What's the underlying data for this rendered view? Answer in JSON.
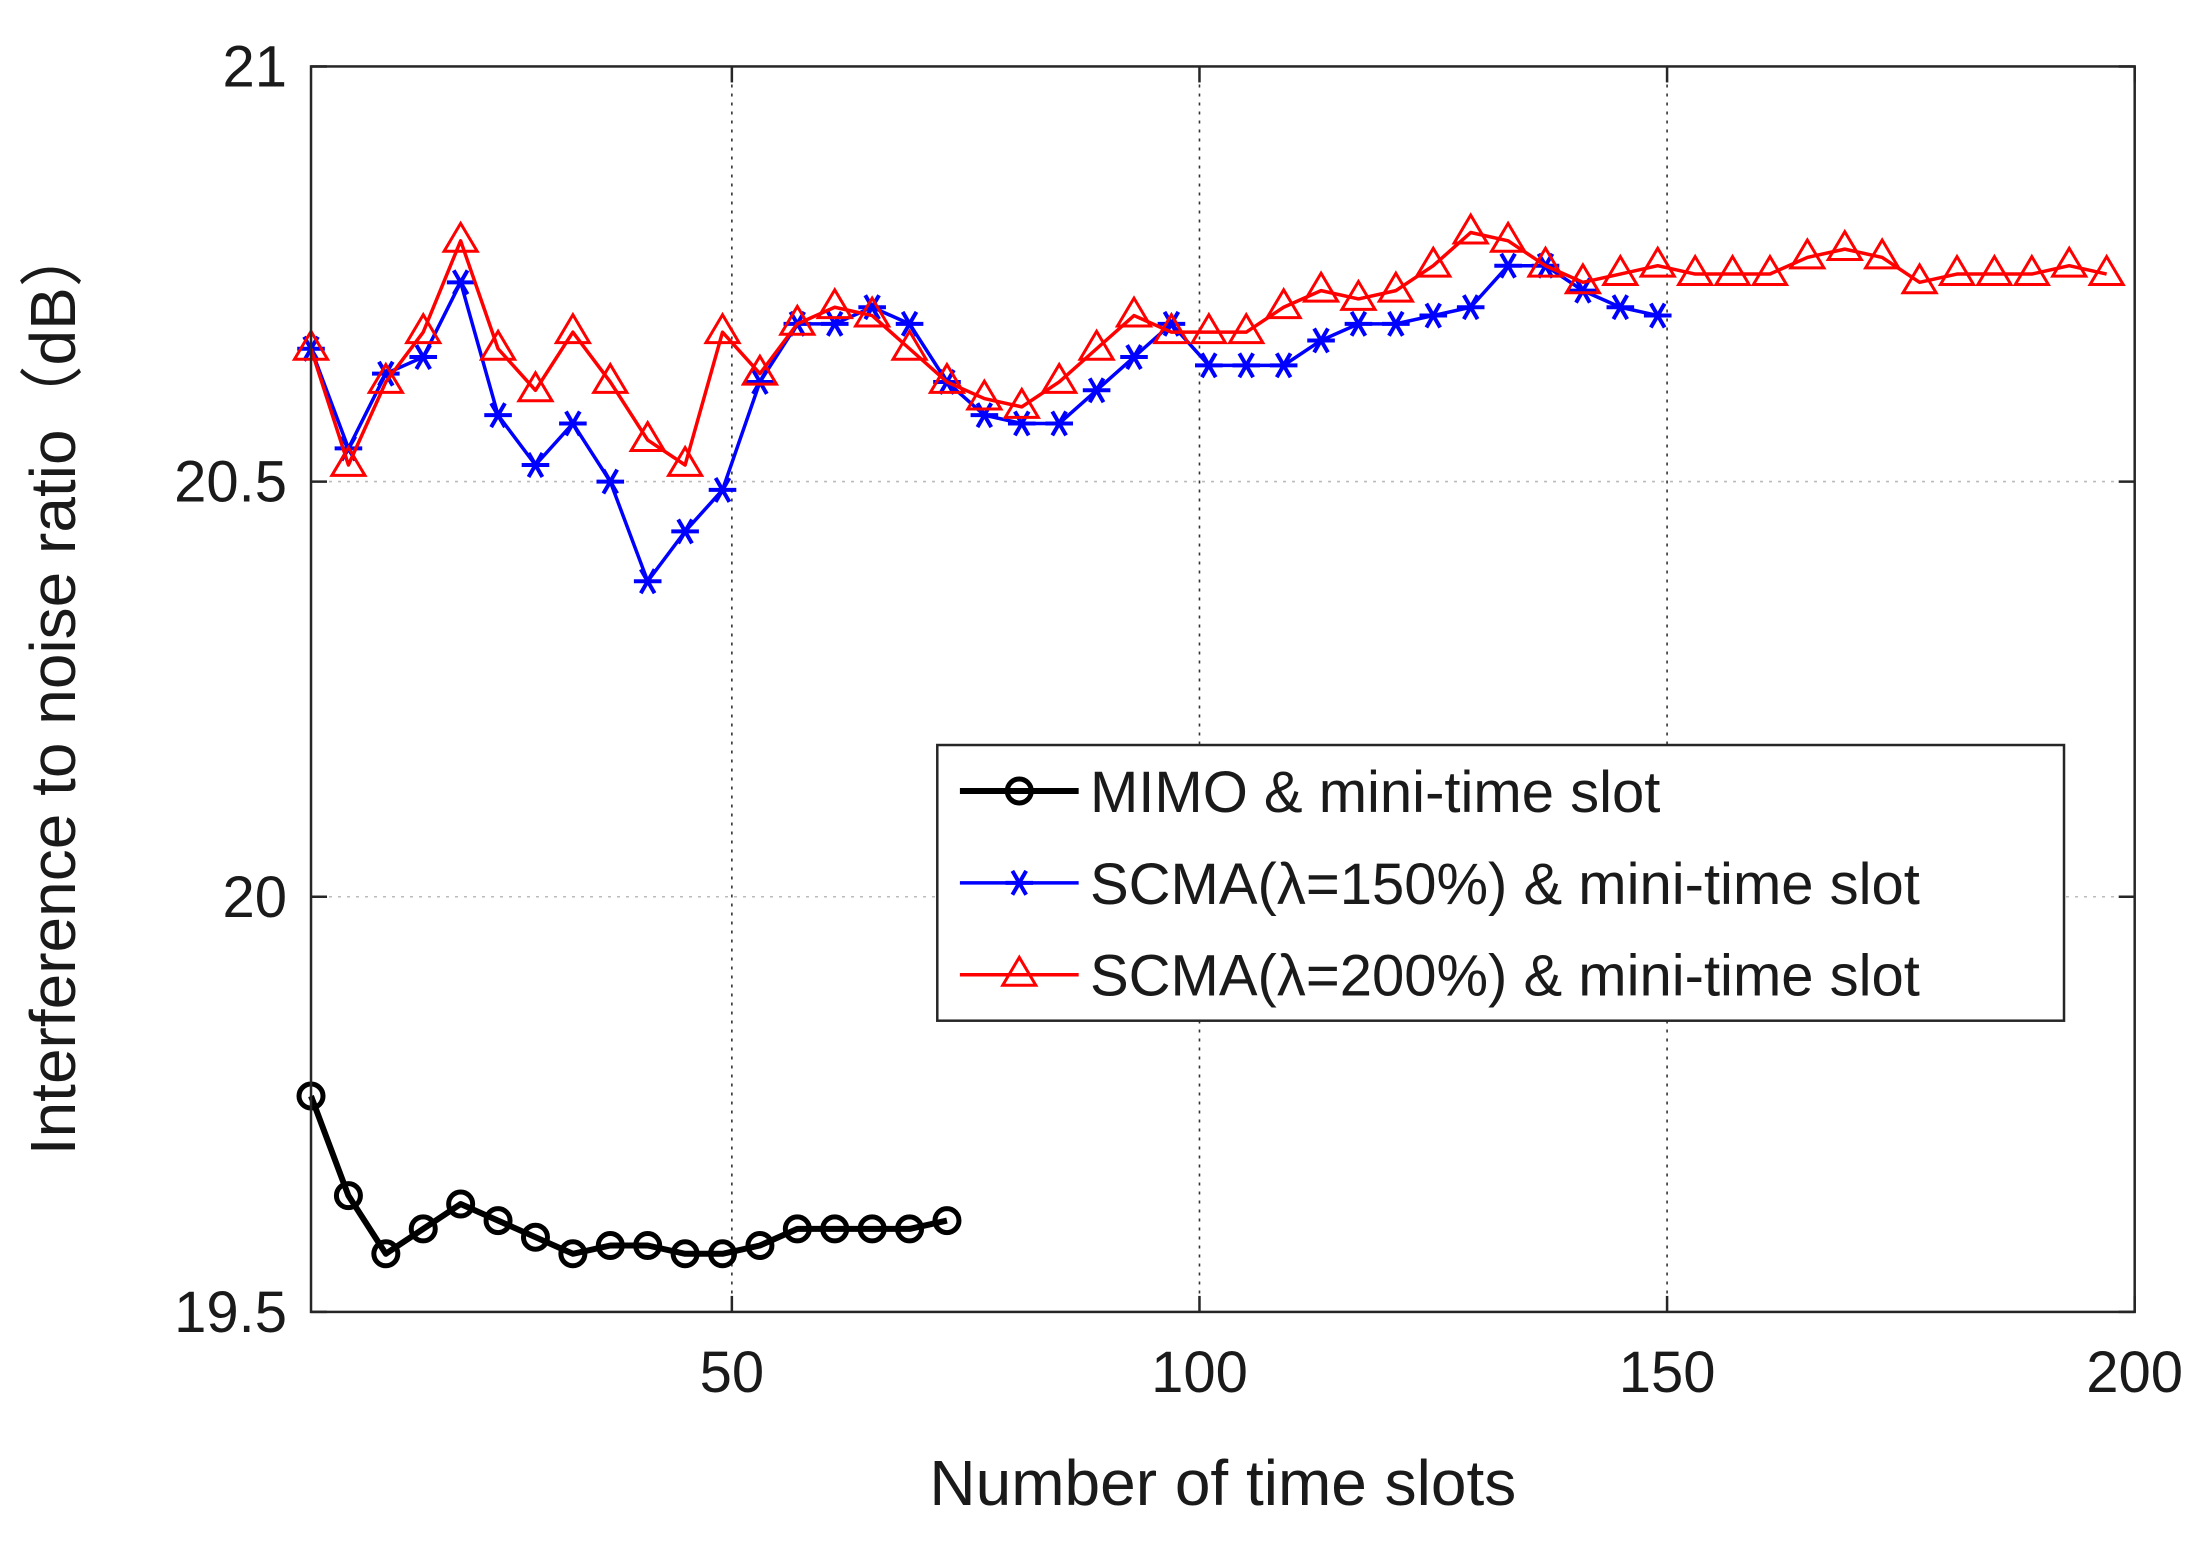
{
  "chart_data": {
    "type": "line",
    "xlabel": "Number of time slots",
    "ylabel": "Interference to noise ratio（dB）",
    "xlim": [
      5,
      200
    ],
    "ylim": [
      19.5,
      21
    ],
    "xticks": [
      50,
      100,
      150,
      200
    ],
    "xtick_labels": [
      "50",
      "100",
      "150",
      "200"
    ],
    "yticks": [
      19.5,
      20,
      20.5,
      21
    ],
    "ytick_labels": [
      "19.5",
      "20",
      "20.5",
      "21"
    ],
    "grid": "dotted",
    "legend_placement": "center-right",
    "series": [
      {
        "name": "MIMO & mini-time slot",
        "color": "#000000",
        "marker": "circle",
        "x": [
          5,
          9,
          13,
          17,
          21,
          25,
          29,
          33,
          37,
          41,
          45,
          49,
          53,
          57,
          61,
          65,
          69,
          73
        ],
        "y": [
          19.76,
          19.64,
          19.57,
          19.6,
          19.63,
          19.61,
          19.59,
          19.57,
          19.58,
          19.58,
          19.57,
          19.57,
          19.58,
          19.6,
          19.6,
          19.6,
          19.6,
          19.61
        ]
      },
      {
        "name": "SCMA(λ=150%) & mini-time slot",
        "color": "#0000ff",
        "marker": "asterisk",
        "x": [
          5,
          9,
          13,
          17,
          21,
          25,
          29,
          33,
          37,
          41,
          45,
          49,
          53,
          57,
          61,
          65,
          69,
          73,
          77,
          81,
          85,
          89,
          93,
          97,
          101,
          105,
          109,
          113,
          117,
          121,
          125,
          129,
          133,
          137,
          141,
          145,
          149
        ],
        "y": [
          20.66,
          20.54,
          20.63,
          20.65,
          20.74,
          20.58,
          20.52,
          20.57,
          20.5,
          20.38,
          20.44,
          20.49,
          20.62,
          20.69,
          20.69,
          20.71,
          20.69,
          20.62,
          20.58,
          20.57,
          20.57,
          20.61,
          20.65,
          20.69,
          20.64,
          20.64,
          20.64,
          20.67,
          20.69,
          20.69,
          20.7,
          20.71,
          20.76,
          20.76,
          20.73,
          20.71,
          20.7
        ]
      },
      {
        "name": "SCMA(λ=200%) & mini-time slot",
        "color": "#ff0000",
        "marker": "triangle",
        "x": [
          5,
          9,
          13,
          17,
          21,
          25,
          29,
          33,
          37,
          41,
          45,
          49,
          53,
          57,
          61,
          65,
          69,
          73,
          77,
          81,
          85,
          89,
          93,
          97,
          101,
          105,
          109,
          113,
          117,
          121,
          125,
          129,
          133,
          137,
          141,
          145,
          149,
          153,
          157,
          161,
          165,
          169,
          173,
          177,
          181,
          185,
          189,
          193,
          197
        ],
        "y": [
          20.66,
          20.52,
          20.62,
          20.68,
          20.79,
          20.66,
          20.61,
          20.68,
          20.62,
          20.55,
          20.52,
          20.68,
          20.63,
          20.69,
          20.71,
          20.7,
          20.66,
          20.62,
          20.6,
          20.59,
          20.62,
          20.66,
          20.7,
          20.68,
          20.68,
          20.68,
          20.71,
          20.73,
          20.72,
          20.73,
          20.76,
          20.8,
          20.79,
          20.76,
          20.74,
          20.75,
          20.76,
          20.75,
          20.75,
          20.75,
          20.77,
          20.78,
          20.77,
          20.74,
          20.75,
          20.75,
          20.75,
          20.76,
          20.75
        ]
      }
    ]
  }
}
